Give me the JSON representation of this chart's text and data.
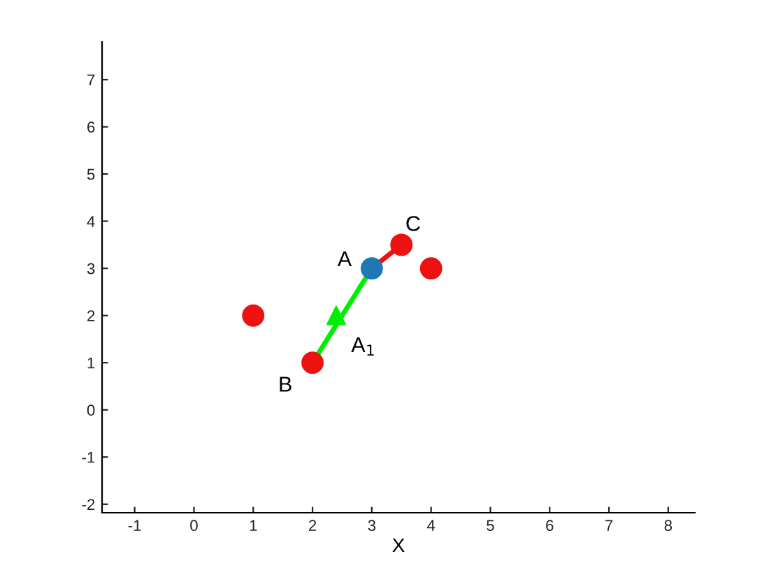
{
  "chart_data": {
    "type": "scatter",
    "xlabel": "X",
    "xlim": [
      -1.55,
      8.45
    ],
    "ylim": [
      -2.18,
      7.8
    ],
    "xticks": [
      -1,
      0,
      1,
      2,
      3,
      4,
      5,
      6,
      7,
      8
    ],
    "yticks": [
      -2,
      -1,
      0,
      1,
      2,
      3,
      4,
      5,
      6,
      7
    ],
    "grid": false,
    "legend": false,
    "series": [
      {
        "type": "line",
        "color": "#00ee00",
        "x": [
          2,
          3
        ],
        "values": [
          1,
          3
        ],
        "marker": "none",
        "line_style": "solid"
      },
      {
        "type": "line",
        "color": "#ee1111",
        "x": [
          3,
          3.5
        ],
        "values": [
          3,
          3.5
        ],
        "marker": "none",
        "line_style": "solid"
      },
      {
        "color": "#ee1111",
        "x": [
          1,
          2,
          3.5,
          4
        ],
        "values": [
          2,
          1,
          3.5,
          3
        ],
        "marker": "circle"
      },
      {
        "color": "#1f77b4",
        "x": [
          3
        ],
        "values": [
          3
        ],
        "marker": "circle"
      },
      {
        "color": "#00ee00",
        "x": [
          2.4
        ],
        "values": [
          2
        ],
        "marker": "triangle"
      }
    ],
    "annotations": [
      {
        "text": "A",
        "x": 3,
        "y": 3
      },
      {
        "text": "B",
        "x": 2,
        "y": 1
      },
      {
        "text": "C",
        "x": 3.5,
        "y": 3.5
      },
      {
        "text": "A$_{1}$",
        "x": 2.4,
        "y": 2
      }
    ]
  }
}
